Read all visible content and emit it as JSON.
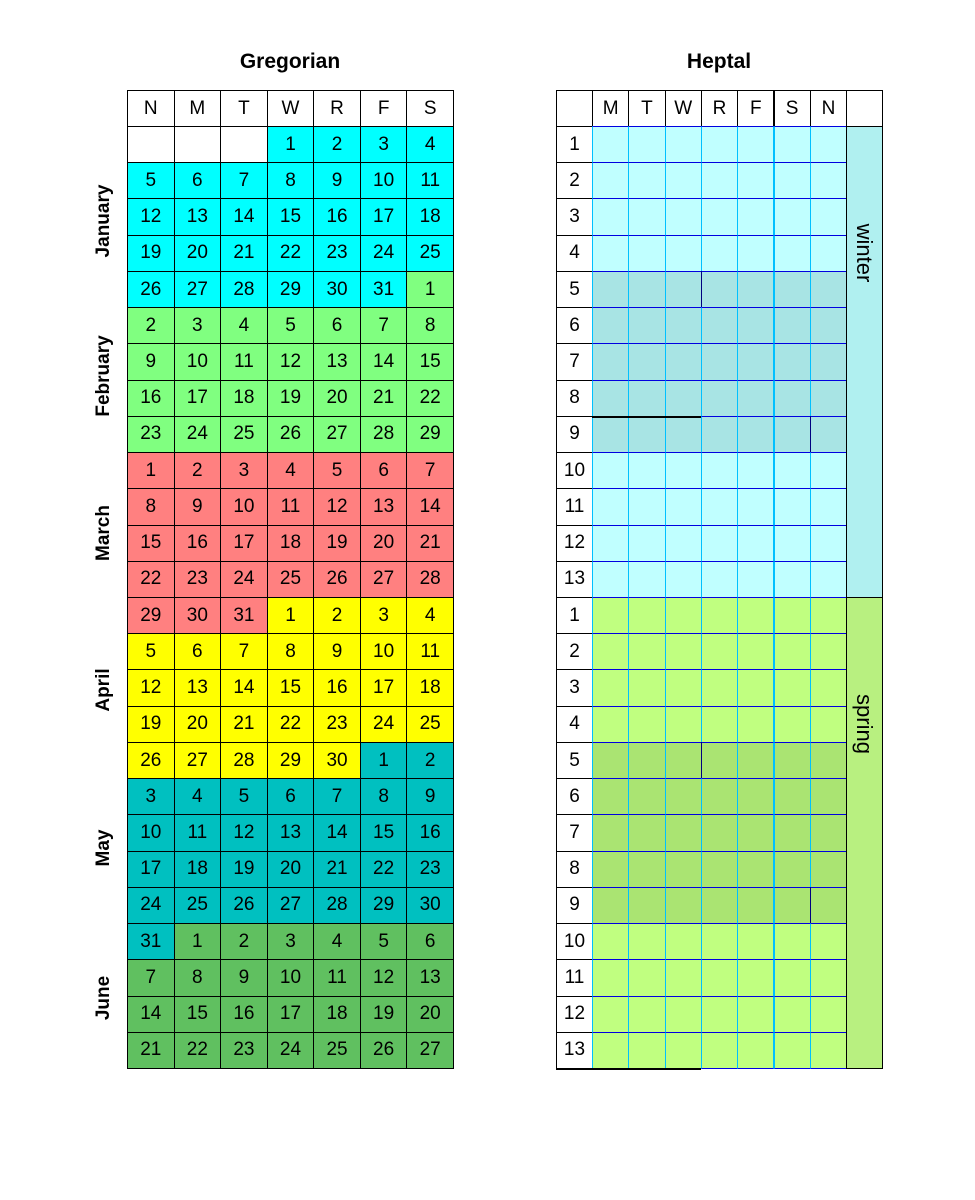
{
  "gregorian": {
    "title": "Gregorian",
    "headers": [
      "N",
      "M",
      "T",
      "W",
      "R",
      "F",
      "S"
    ],
    "months": [
      {
        "name": "January",
        "color": "#00FFFF"
      },
      {
        "name": "February",
        "color": "#80FF80"
      },
      {
        "name": "March",
        "color": "#FF8080"
      },
      {
        "name": "April",
        "color": "#FFFF00"
      },
      {
        "name": "May",
        "color": "#00C0C0"
      },
      {
        "name": "June",
        "color": "#60C060"
      }
    ],
    "weeks": [
      [
        null,
        null,
        null,
        1,
        2,
        3,
        4
      ],
      [
        5,
        6,
        7,
        8,
        9,
        10,
        11
      ],
      [
        12,
        13,
        14,
        15,
        16,
        17,
        18
      ],
      [
        19,
        20,
        21,
        22,
        23,
        24,
        25
      ],
      [
        26,
        27,
        28,
        29,
        30,
        31,
        1
      ],
      [
        2,
        3,
        4,
        5,
        6,
        7,
        8
      ],
      [
        9,
        10,
        11,
        12,
        13,
        14,
        15
      ],
      [
        16,
        17,
        18,
        19,
        20,
        21,
        22
      ],
      [
        23,
        24,
        25,
        26,
        27,
        28,
        29
      ],
      [
        1,
        2,
        3,
        4,
        5,
        6,
        7
      ],
      [
        8,
        9,
        10,
        11,
        12,
        13,
        14
      ],
      [
        15,
        16,
        17,
        18,
        19,
        20,
        21
      ],
      [
        22,
        23,
        24,
        25,
        26,
        27,
        28
      ],
      [
        29,
        30,
        31,
        1,
        2,
        3,
        4
      ],
      [
        5,
        6,
        7,
        8,
        9,
        10,
        11
      ],
      [
        12,
        13,
        14,
        15,
        16,
        17,
        18
      ],
      [
        19,
        20,
        21,
        22,
        23,
        24,
        25
      ],
      [
        26,
        27,
        28,
        29,
        30,
        1,
        2
      ],
      [
        3,
        4,
        5,
        6,
        7,
        8,
        9
      ],
      [
        10,
        11,
        12,
        13,
        14,
        15,
        16
      ],
      [
        17,
        18,
        19,
        20,
        21,
        22,
        23
      ],
      [
        24,
        25,
        26,
        27,
        28,
        29,
        30
      ],
      [
        31,
        1,
        2,
        3,
        4,
        5,
        6
      ],
      [
        7,
        8,
        9,
        10,
        11,
        12,
        13
      ],
      [
        14,
        15,
        16,
        17,
        18,
        19,
        20
      ],
      [
        21,
        22,
        23,
        24,
        25,
        26,
        27
      ]
    ]
  },
  "heptal": {
    "title": "Heptal",
    "headers": [
      "M",
      "T",
      "W",
      "R",
      "F",
      "S",
      "N"
    ],
    "seasons": [
      {
        "name": "winter",
        "label_color": "#B0F0F0",
        "cell_color": "#C0FFFF",
        "shaded_color": "#A8E4E4",
        "weeks": [
          "1",
          "2",
          "3",
          "4",
          "5",
          "6",
          "7",
          "8",
          "9",
          "10",
          "11",
          "12",
          "13"
        ]
      },
      {
        "name": "spring",
        "label_color": "#B8F080",
        "cell_color": "#C0FF80",
        "shaded_color": "#AAE472",
        "weeks": [
          "1",
          "2",
          "3",
          "4",
          "5",
          "6",
          "7",
          "8",
          "9",
          "10",
          "11",
          "12",
          "13"
        ]
      }
    ]
  }
}
